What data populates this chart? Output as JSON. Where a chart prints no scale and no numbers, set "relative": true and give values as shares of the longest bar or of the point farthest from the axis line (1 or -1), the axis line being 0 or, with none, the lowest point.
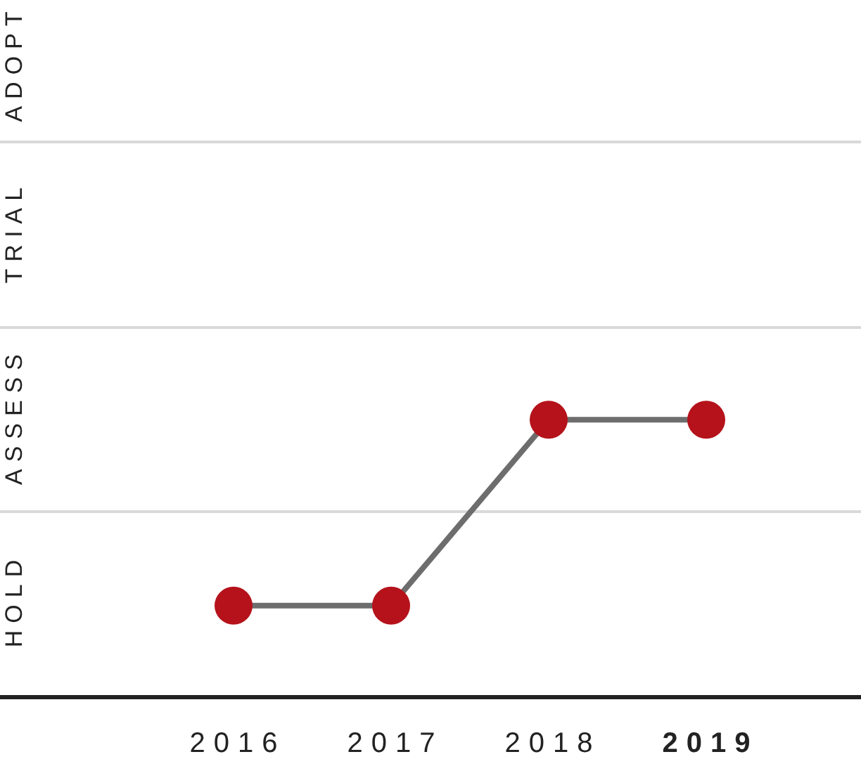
{
  "chart_data": {
    "type": "line",
    "relative": true,
    "categories": [
      "2016",
      "2017",
      "2018",
      "2019"
    ],
    "values": [
      0.33,
      0.33,
      1,
      1
    ],
    "color": "#6d6d6d",
    "colors": [
      "#b5121b",
      "#b5121b",
      "#b5121b",
      "#b5121b"
    ],
    "marker": "circle",
    "line_style": "solid",
    "ref_lines": [
      {
        "axis": "y",
        "value": 0.67,
        "color": "#d9d9d9"
      },
      {
        "axis": "y",
        "value": 1.33,
        "color": "#d9d9d9"
      },
      {
        "axis": "y",
        "value": 2,
        "color": "#d9d9d9"
      }
    ],
    "annotations": [
      "HOLD",
      "ASSESS",
      "TRIAL",
      "ADOPT"
    ]
  }
}
